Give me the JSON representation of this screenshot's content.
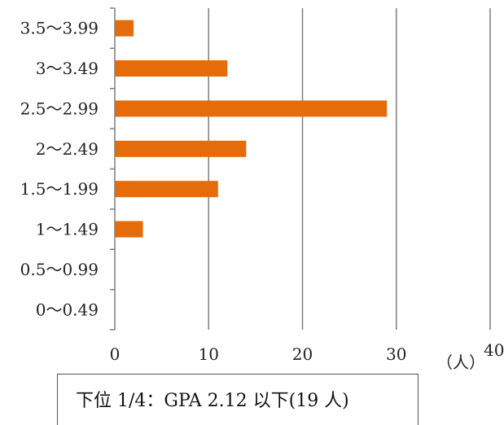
{
  "chart_data": {
    "type": "bar",
    "orientation": "horizontal",
    "categories": [
      "0〜0.49",
      "0.5〜0.99",
      "1〜1.49",
      "1.5〜1.99",
      "2〜2.49",
      "2.5〜2.99",
      "3〜3.49",
      "3.5〜3.99"
    ],
    "values": [
      0,
      0,
      3,
      11,
      14,
      29,
      12,
      2
    ],
    "xlim": [
      0,
      40
    ],
    "xticks": [
      0,
      10,
      20,
      30,
      40
    ],
    "xlabel": "（人）",
    "title": "",
    "grid": "vertical",
    "bar_color": "#E46C0A",
    "grid_color": "#7F7F7F"
  },
  "note": "下位 1/4：GPA 2.12 以下(19 人)"
}
